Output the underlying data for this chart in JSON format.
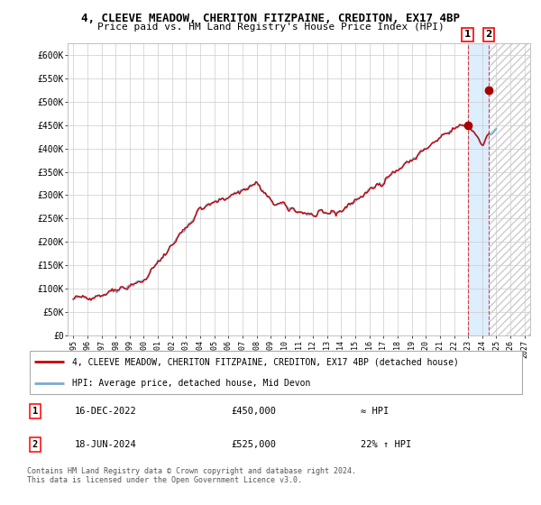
{
  "title_line1": "4, CLEEVE MEADOW, CHERITON FITZPAINE, CREDITON, EX17 4BP",
  "title_line2": "Price paid vs. HM Land Registry's House Price Index (HPI)",
  "ylabel_ticks": [
    "£0",
    "£50K",
    "£100K",
    "£150K",
    "£200K",
    "£250K",
    "£300K",
    "£350K",
    "£400K",
    "£450K",
    "£500K",
    "£550K",
    "£600K"
  ],
  "ytick_values": [
    0,
    50000,
    100000,
    150000,
    200000,
    250000,
    300000,
    350000,
    400000,
    450000,
    500000,
    550000,
    600000
  ],
  "ylim": [
    0,
    625000
  ],
  "xlim_start": 1994.6,
  "xlim_end": 2027.4,
  "xtick_years": [
    1995,
    1996,
    1997,
    1998,
    1999,
    2000,
    2001,
    2002,
    2003,
    2004,
    2005,
    2006,
    2007,
    2008,
    2009,
    2010,
    2011,
    2012,
    2013,
    2014,
    2015,
    2016,
    2017,
    2018,
    2019,
    2020,
    2021,
    2022,
    2023,
    2024,
    2025,
    2026,
    2027
  ],
  "hpi_color": "#7aaad0",
  "price_color": "#cc0000",
  "marker_color": "#aa0000",
  "bg_color": "#ffffff",
  "grid_color": "#cccccc",
  "highlight_bg": "#ddeeff",
  "hatch_color": "#cccccc",
  "sale1_x": 2022.96,
  "sale1_y": 450000,
  "sale2_x": 2024.46,
  "sale2_y": 525000,
  "sale1_label": "1",
  "sale2_label": "2",
  "legend_line1": "4, CLEEVE MEADOW, CHERITON FITZPAINE, CREDITON, EX17 4BP (detached house)",
  "legend_line2": "HPI: Average price, detached house, Mid Devon",
  "table_row1_num": "1",
  "table_row1_date": "16-DEC-2022",
  "table_row1_price": "£450,000",
  "table_row1_hpi": "≈ HPI",
  "table_row2_num": "2",
  "table_row2_date": "18-JUN-2024",
  "table_row2_price": "£525,000",
  "table_row2_hpi": "22% ↑ HPI",
  "footer": "Contains HM Land Registry data © Crown copyright and database right 2024.\nThis data is licensed under the Open Government Licence v3.0."
}
